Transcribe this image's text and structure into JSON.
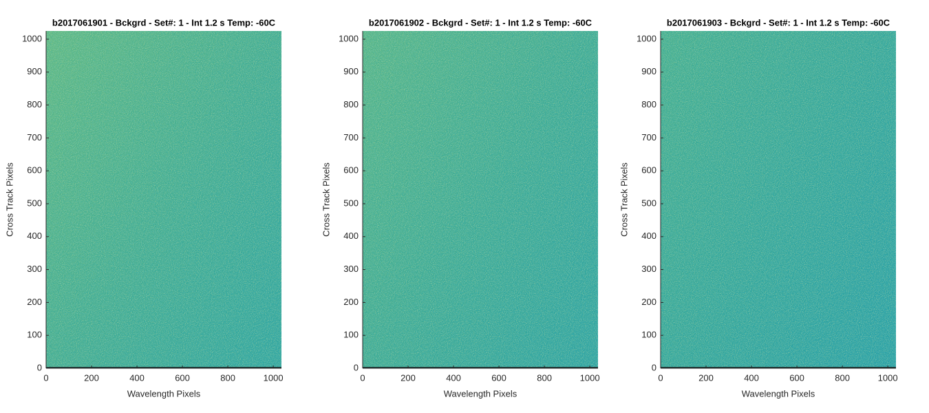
{
  "chart_data": [
    {
      "type": "image",
      "title": "b2017061901 - Bckgrd - Set#: 1 - Int 1.2 s Temp: -60C",
      "x_label": "Wavelength Pixels",
      "y_label": "Cross Track Pixels",
      "xlim": [
        0,
        1036
      ],
      "ylim": [
        0,
        1025
      ],
      "xticks": [
        0,
        200,
        400,
        600,
        800,
        1000
      ],
      "yticks": [
        0,
        100,
        200,
        300,
        400,
        500,
        600,
        700,
        800,
        900,
        1000
      ]
    },
    {
      "type": "image",
      "title": "b2017061902 - Bckgrd - Set#: 1 - Int 1.2 s Temp: -60C",
      "x_label": "Wavelength Pixels",
      "y_label": "Cross Track Pixels",
      "xlim": [
        0,
        1036
      ],
      "ylim": [
        0,
        1025
      ],
      "xticks": [
        0,
        200,
        400,
        600,
        800,
        1000
      ],
      "yticks": [
        0,
        100,
        200,
        300,
        400,
        500,
        600,
        700,
        800,
        900,
        1000
      ]
    },
    {
      "type": "image",
      "title": "b2017061903 - Bckgrd - Set#: 1 - Int 1.2 s Temp: -60C",
      "x_label": "Wavelength Pixels",
      "y_label": "Cross Track Pixels",
      "xlim": [
        0,
        1036
      ],
      "ylim": [
        0,
        1025
      ],
      "xticks": [
        0,
        200,
        400,
        600,
        800,
        1000
      ],
      "yticks": [
        0,
        100,
        200,
        300,
        400,
        500,
        600,
        700,
        800,
        900,
        1000
      ]
    }
  ]
}
